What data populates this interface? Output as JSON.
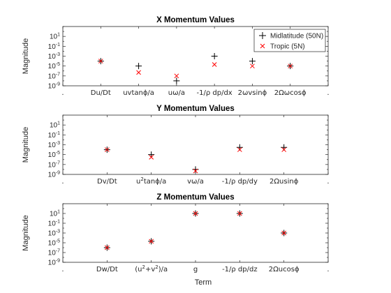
{
  "figure": {
    "xlabel": "Term",
    "legend": {
      "placement": "top-right",
      "entries": [
        "Midlatitude (50N)",
        "Tropic (5N)"
      ]
    },
    "colors": {
      "midlatitude": "#000000",
      "tropic": "#ff0000"
    }
  },
  "chart_data": [
    {
      "type": "scatter",
      "title": "X Momentum Values",
      "ylabel": "Magnitude",
      "yscale": "log",
      "ylim": [
        1e-09,
        1000
      ],
      "yticks": [
        "10^{1}",
        "10^{-1}",
        "10^{-3}",
        "10^{-5}",
        "10^{-7}",
        "10^{-9}"
      ],
      "xticklabels": [
        "",
        "Du/Dt",
        "uvtanϕ/a",
        "uω/a",
        "-1/ρ dp/dx",
        "2ωvsinϕ",
        "2Ωωcosϕ",
        ""
      ],
      "series": [
        {
          "name": "Midlatitude (50N)",
          "marker": "+",
          "values": [
            null,
            0.0001,
            1e-05,
            1e-08,
            0.001,
            0.0001,
            1e-05,
            null
          ]
        },
        {
          "name": "Tropic (5N)",
          "marker": "x",
          "values": [
            null,
            0.0001,
            5e-07,
            1e-07,
            2e-05,
            1e-05,
            1e-05,
            null
          ]
        }
      ]
    },
    {
      "type": "scatter",
      "title": "Y Momentum Values",
      "ylabel": "Magnitude",
      "yscale": "log",
      "ylim": [
        1e-09,
        1000
      ],
      "yticks": [
        "10^{1}",
        "10^{-1}",
        "10^{-3}",
        "10^{-5}",
        "10^{-7}",
        "10^{-9}"
      ],
      "xticklabels": [
        "",
        "Dv/Dt",
        "u^{2}tanϕ/a",
        "vω/a",
        "-1/ρ dp/dy",
        "2Ωusinϕ",
        ""
      ],
      "series": [
        {
          "name": "Midlatitude (50N)",
          "marker": "+",
          "values": [
            null,
            0.0001,
            1e-05,
            1e-08,
            0.0003,
            0.0003,
            null
          ]
        },
        {
          "name": "Tropic (5N)",
          "marker": "x",
          "values": [
            null,
            0.0001,
            3e-06,
            5e-09,
            0.0001,
            0.0001,
            null
          ]
        }
      ]
    },
    {
      "type": "scatter",
      "title": "Z Momentum Values",
      "ylabel": "Magnitude",
      "yscale": "log",
      "ylim": [
        1e-09,
        1000
      ],
      "yticks": [
        "10^{1}",
        "10^{-1}",
        "10^{-3}",
        "10^{-5}",
        "10^{-7}",
        "10^{-9}"
      ],
      "xticklabels": [
        "",
        "Dw/Dt",
        "(u^{2}+v^{2})/a",
        "g",
        "-1/ρ dp/dz",
        "2Ωucosϕ",
        ""
      ],
      "series": [
        {
          "name": "Midlatitude (50N)",
          "marker": "+",
          "values": [
            null,
            1e-06,
            2e-05,
            10,
            10,
            0.001,
            null
          ]
        },
        {
          "name": "Tropic (5N)",
          "marker": "x",
          "values": [
            null,
            1e-06,
            2e-05,
            10,
            10,
            0.001,
            null
          ]
        }
      ]
    }
  ]
}
